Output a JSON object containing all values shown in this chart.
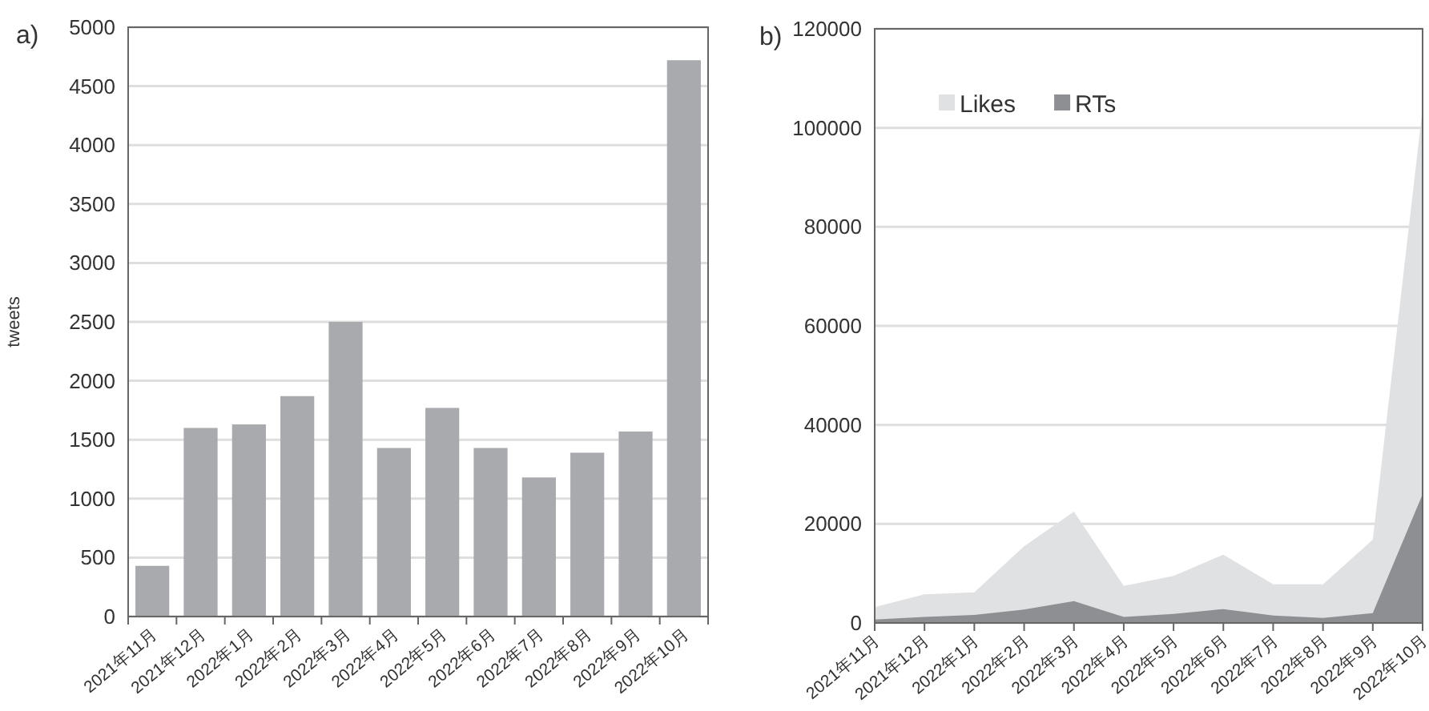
{
  "chart_data": [
    {
      "type": "bar",
      "title": "a)",
      "ylabel": "tweets",
      "categories": [
        "2021年11月",
        "2021年12月",
        "2022年1月",
        "2022年2月",
        "2022年3月",
        "2022年4月",
        "2022年5月",
        "2022年6月",
        "2022年7月",
        "2022年8月",
        "2022年9月",
        "2022年10月"
      ],
      "values": [
        430,
        1600,
        1630,
        1870,
        2500,
        1430,
        1770,
        1430,
        1180,
        1390,
        1570,
        4720
      ],
      "color": "#a9aaae",
      "ylim": [
        0,
        5000
      ],
      "yticks": [
        0,
        500,
        1000,
        1500,
        2000,
        2500,
        3000,
        3500,
        4000,
        4500,
        5000
      ],
      "grid": "y"
    },
    {
      "type": "area",
      "title": "b)",
      "categories": [
        "2021年11月",
        "2021年12月",
        "2022年1月",
        "2022年2月",
        "2022年3月",
        "2022年4月",
        "2022年5月",
        "2022年6月",
        "2022年7月",
        "2022年8月",
        "2022年9月",
        "2022年10月"
      ],
      "series": [
        {
          "name": "Likes",
          "color": "#e0e1e3",
          "values": [
            3200,
            5800,
            6200,
            15500,
            22500,
            7500,
            9500,
            13800,
            7800,
            7800,
            16800,
            104000
          ]
        },
        {
          "name": "RTs",
          "color": "#8e8f93",
          "values": [
            700,
            1200,
            1600,
            2700,
            4400,
            1200,
            1800,
            2800,
            1500,
            1000,
            2000,
            26000
          ]
        }
      ],
      "ylim": [
        0,
        120000
      ],
      "yticks": [
        0,
        20000,
        40000,
        60000,
        80000,
        100000,
        120000
      ],
      "grid": "y",
      "legend": "top left"
    }
  ]
}
